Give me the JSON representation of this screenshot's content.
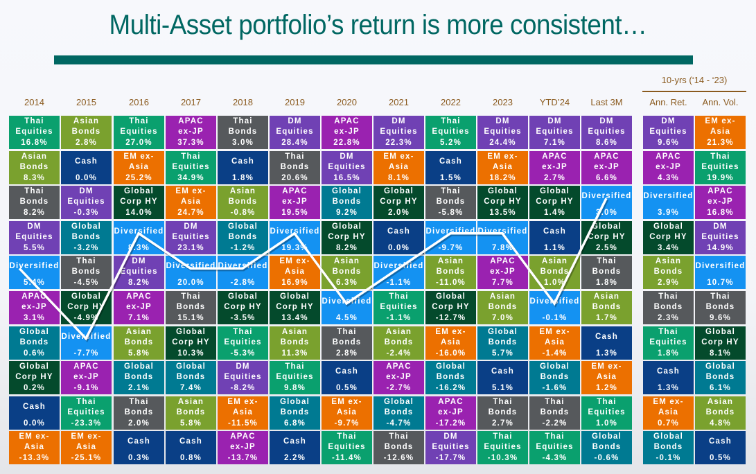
{
  "title": "Multi-Asset portfolio’s return is more consistent…",
  "colors": {
    "Thai Equities": "#0aa06e",
    "Asian Bonds": "#7aa12e",
    "Thai Bonds": "#56595c",
    "DM Equities": "#7041b4",
    "Diversified": "#1492f2",
    "APAC ex-JP": "#9a22b0",
    "Global Bonds": "#007a92",
    "Global Corp HY": "#044a2c",
    "Cash": "#0a3f86",
    "EM ex-Asia": "#ec7000",
    "title": "#006762",
    "header": "#8a5a1e",
    "line": "#ffffff"
  },
  "chart_data": {
    "type": "table",
    "title": "Multi-Asset portfolio’s return is more consistent…",
    "subtitle": "10-yrs (‘14 - ‘23)",
    "highlight_series": "Diversified",
    "columns": [
      {
        "header": "2014",
        "cells": [
          {
            "asset": "Thai Equities",
            "value": "16.8%"
          },
          {
            "asset": "Asian Bonds",
            "value": "8.3%"
          },
          {
            "asset": "Thai Bonds",
            "value": "8.2%"
          },
          {
            "asset": "DM Equities",
            "value": "5.5%"
          },
          {
            "asset": "Diversified",
            "value": "5.4%"
          },
          {
            "asset": "APAC ex-JP",
            "value": "3.1%"
          },
          {
            "asset": "Global Bonds",
            "value": "0.6%"
          },
          {
            "asset": "Global Corp HY",
            "value": "0.2%"
          },
          {
            "asset": "Cash",
            "value": "0.0%"
          },
          {
            "asset": "EM ex-Asia",
            "value": "-13.3%"
          }
        ]
      },
      {
        "header": "2015",
        "cells": [
          {
            "asset": "Asian Bonds",
            "value": "2.8%"
          },
          {
            "asset": "Cash",
            "value": "0.0%"
          },
          {
            "asset": "DM Equities",
            "value": "-0.3%"
          },
          {
            "asset": "Global Bonds",
            "value": "-3.2%"
          },
          {
            "asset": "Thai Bonds",
            "value": "-4.5%"
          },
          {
            "asset": "Global Corp HY",
            "value": "-4.9%"
          },
          {
            "asset": "Diversified",
            "value": "-7.7%"
          },
          {
            "asset": "APAC ex-JP",
            "value": "-9.1%"
          },
          {
            "asset": "Thai Equities",
            "value": "-23.3%"
          },
          {
            "asset": "EM ex-Asia",
            "value": "-25.1%"
          }
        ]
      },
      {
        "header": "2016",
        "cells": [
          {
            "asset": "Thai Equities",
            "value": "27.0%"
          },
          {
            "asset": "EM ex-Asia",
            "value": "25.2%"
          },
          {
            "asset": "Global Corp HY",
            "value": "14.0%"
          },
          {
            "asset": "Diversified",
            "value": "8.3%"
          },
          {
            "asset": "DM Equities",
            "value": "8.2%"
          },
          {
            "asset": "APAC ex-JP",
            "value": "7.1%"
          },
          {
            "asset": "Asian Bonds",
            "value": "5.8%"
          },
          {
            "asset": "Global Bonds",
            "value": "2.1%"
          },
          {
            "asset": "Thai Bonds",
            "value": "2.0%"
          },
          {
            "asset": "Cash",
            "value": "0.3%"
          }
        ]
      },
      {
        "header": "2017",
        "cells": [
          {
            "asset": "APAC ex-JP",
            "value": "37.3%"
          },
          {
            "asset": "Thai Equities",
            "value": "34.9%"
          },
          {
            "asset": "EM ex-Asia",
            "value": "24.7%"
          },
          {
            "asset": "DM Equities",
            "value": "23.1%"
          },
          {
            "asset": "Diversified",
            "value": "20.0%"
          },
          {
            "asset": "Thai Bonds",
            "value": "15.1%"
          },
          {
            "asset": "Global Corp HY",
            "value": "10.3%"
          },
          {
            "asset": "Global Bonds",
            "value": "7.4%"
          },
          {
            "asset": "Asian Bonds",
            "value": "5.8%"
          },
          {
            "asset": "Cash",
            "value": "0.8%"
          }
        ]
      },
      {
        "header": "2018",
        "cells": [
          {
            "asset": "Thai Bonds",
            "value": "3.0%"
          },
          {
            "asset": "Cash",
            "value": "1.8%"
          },
          {
            "asset": "Asian Bonds",
            "value": "-0.8%"
          },
          {
            "asset": "Global Bonds",
            "value": "-1.2%"
          },
          {
            "asset": "Diversified",
            "value": "-2.8%"
          },
          {
            "asset": "Global Corp HY",
            "value": "-3.5%"
          },
          {
            "asset": "Thai Equities",
            "value": "-5.3%"
          },
          {
            "asset": "DM Equities",
            "value": "-8.2%"
          },
          {
            "asset": "EM ex-Asia",
            "value": "-11.5%"
          },
          {
            "asset": "APAC ex-JP",
            "value": "-13.7%"
          }
        ]
      },
      {
        "header": "2019",
        "cells": [
          {
            "asset": "DM Equities",
            "value": "28.4%"
          },
          {
            "asset": "Thai Bonds",
            "value": "20.6%"
          },
          {
            "asset": "APAC ex-JP",
            "value": "19.5%"
          },
          {
            "asset": "Diversified",
            "value": "19.3%"
          },
          {
            "asset": "EM ex-Asia",
            "value": "16.9%"
          },
          {
            "asset": "Global Corp HY",
            "value": "13.4%"
          },
          {
            "asset": "Asian Bonds",
            "value": "11.3%"
          },
          {
            "asset": "Thai Equities",
            "value": "9.8%"
          },
          {
            "asset": "Global Bonds",
            "value": "6.8%"
          },
          {
            "asset": "Cash",
            "value": "2.2%"
          }
        ]
      },
      {
        "header": "2020",
        "cells": [
          {
            "asset": "APAC ex-JP",
            "value": "22.8%"
          },
          {
            "asset": "DM Equities",
            "value": "16.5%"
          },
          {
            "asset": "Global Bonds",
            "value": "9.2%"
          },
          {
            "asset": "Global Corp HY",
            "value": "8.2%"
          },
          {
            "asset": "Asian Bonds",
            "value": "6.3%"
          },
          {
            "asset": "Diversified",
            "value": "4.5%"
          },
          {
            "asset": "Thai Bonds",
            "value": "2.8%"
          },
          {
            "asset": "Cash",
            "value": "0.5%"
          },
          {
            "asset": "EM ex-Asia",
            "value": "-9.7%"
          },
          {
            "asset": "Thai Equities",
            "value": "-11.4%"
          }
        ]
      },
      {
        "header": "2021",
        "cells": [
          {
            "asset": "DM Equities",
            "value": "22.3%"
          },
          {
            "asset": "EM ex-Asia",
            "value": "8.1%"
          },
          {
            "asset": "Global Corp HY",
            "value": "2.0%"
          },
          {
            "asset": "Cash",
            "value": "0.0%"
          },
          {
            "asset": "Diversified",
            "value": "-1.1%"
          },
          {
            "asset": "Thai Equities",
            "value": "-1.1%"
          },
          {
            "asset": "Asian Bonds",
            "value": "-2.4%"
          },
          {
            "asset": "APAC ex-JP",
            "value": "-2.7%"
          },
          {
            "asset": "Global Bonds",
            "value": "-4.7%"
          },
          {
            "asset": "Thai Bonds",
            "value": "-12.6%"
          }
        ]
      },
      {
        "header": "2022",
        "cells": [
          {
            "asset": "Thai Equities",
            "value": "5.2%"
          },
          {
            "asset": "Cash",
            "value": "1.5%"
          },
          {
            "asset": "Thai Bonds",
            "value": "-5.8%"
          },
          {
            "asset": "Diversified",
            "value": "-9.7%"
          },
          {
            "asset": "Asian Bonds",
            "value": "-11.0%"
          },
          {
            "asset": "Global Corp HY",
            "value": "-12.7%"
          },
          {
            "asset": "EM ex-Asia",
            "value": "-16.0%"
          },
          {
            "asset": "Global Bonds",
            "value": "-16.2%"
          },
          {
            "asset": "APAC ex-JP",
            "value": "-17.2%"
          },
          {
            "asset": "DM Equities",
            "value": "-17.7%"
          }
        ]
      },
      {
        "header": "2023",
        "cells": [
          {
            "asset": "DM Equities",
            "value": "24.4%"
          },
          {
            "asset": "EM ex-Asia",
            "value": "18.2%"
          },
          {
            "asset": "Global Corp HY",
            "value": "13.5%"
          },
          {
            "asset": "Diversified",
            "value": "7.8%"
          },
          {
            "asset": "APAC ex-JP",
            "value": "7.7%"
          },
          {
            "asset": "Asian Bonds",
            "value": "7.0%"
          },
          {
            "asset": "Global Bonds",
            "value": "5.7%"
          },
          {
            "asset": "Cash",
            "value": "5.1%"
          },
          {
            "asset": "Thai Bonds",
            "value": "2.7%"
          },
          {
            "asset": "Thai Equities",
            "value": "-10.3%"
          }
        ]
      },
      {
        "header": "YTD’24",
        "cells": [
          {
            "asset": "DM Equities",
            "value": "7.1%"
          },
          {
            "asset": "APAC ex-JP",
            "value": "2.7%"
          },
          {
            "asset": "Global Corp HY",
            "value": "1.4%"
          },
          {
            "asset": "Cash",
            "value": "1.1%"
          },
          {
            "asset": "Asian Bonds",
            "value": "1.0%"
          },
          {
            "asset": "Diversified",
            "value": "-0.1%"
          },
          {
            "asset": "EM ex-Asia",
            "value": "-1.4%"
          },
          {
            "asset": "Global Bonds",
            "value": "-1.6%"
          },
          {
            "asset": "Thai Bonds",
            "value": "-2.2%"
          },
          {
            "asset": "Thai Equities",
            "value": "-4.3%"
          }
        ]
      },
      {
        "header": "Last 3M",
        "cells": [
          {
            "asset": "DM Equities",
            "value": "8.6%"
          },
          {
            "asset": "APAC ex-JP",
            "value": "6.6%"
          },
          {
            "asset": "Diversified",
            "value": "3.0%"
          },
          {
            "asset": "Global Corp HY",
            "value": "2.5%"
          },
          {
            "asset": "Thai Bonds",
            "value": "1.8%"
          },
          {
            "asset": "Asian Bonds",
            "value": "1.7%"
          },
          {
            "asset": "Cash",
            "value": "1.3%"
          },
          {
            "asset": "EM ex-Asia",
            "value": "1.2%"
          },
          {
            "asset": "Thai Equities",
            "value": "1.0%"
          },
          {
            "asset": "Global Bonds",
            "value": "-0.6%"
          }
        ]
      }
    ],
    "summary_columns": [
      {
        "header": "Ann. Ret.",
        "cells": [
          {
            "asset": "DM Equities",
            "value": "9.6%"
          },
          {
            "asset": "APAC ex-JP",
            "value": "4.3%"
          },
          {
            "asset": "Diversified",
            "value": "3.9%"
          },
          {
            "asset": "Global Corp HY",
            "value": "3.4%"
          },
          {
            "asset": "Asian Bonds",
            "value": "2.9%"
          },
          {
            "asset": "Thai Bonds",
            "value": "2.3%"
          },
          {
            "asset": "Thai Equities",
            "value": "1.8%"
          },
          {
            "asset": "Cash",
            "value": "1.3%"
          },
          {
            "asset": "EM ex-Asia",
            "value": "0.7%"
          },
          {
            "asset": "Global Bonds",
            "value": "-0.1%"
          }
        ]
      },
      {
        "header": "Ann. Vol.",
        "cells": [
          {
            "asset": "EM ex-Asia",
            "value": "21.3%"
          },
          {
            "asset": "Thai Equities",
            "value": "19.9%"
          },
          {
            "asset": "APAC ex-JP",
            "value": "16.8%"
          },
          {
            "asset": "DM Equities",
            "value": "14.9%"
          },
          {
            "asset": "Diversified",
            "value": "10.7%"
          },
          {
            "asset": "Thai Bonds",
            "value": "9.6%"
          },
          {
            "asset": "Global Corp HY",
            "value": "8.1%"
          },
          {
            "asset": "Global Bonds",
            "value": "6.1%"
          },
          {
            "asset": "Asian Bonds",
            "value": "4.8%"
          },
          {
            "asset": "Cash",
            "value": "0.5%"
          }
        ]
      }
    ]
  },
  "labels": {
    "Thai Equities": "Thai\nEquities",
    "Asian Bonds": "Asian\nBonds",
    "Thai Bonds": "Thai\nBonds",
    "DM Equities": "DM\nEquities",
    "Diversified": "Diversified",
    "APAC ex-JP": "APAC\nex-JP",
    "Global Bonds": "Global\nBonds",
    "Global Corp HY": "Global\nCorp HY",
    "Cash": "Cash",
    "EM ex-Asia": "EM ex-\nAsia"
  }
}
